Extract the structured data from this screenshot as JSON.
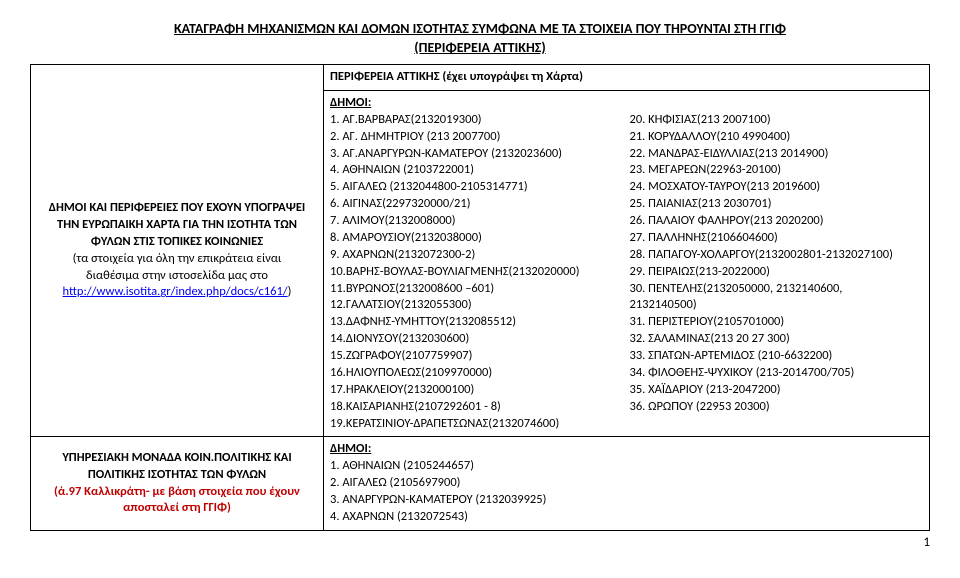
{
  "header": {
    "title": "ΚΑΤΑΓΡΑΦΗ ΜΗΧΑΝΙΣΜΩΝ ΚΑΙ ΔΟΜΩΝ ΙΣΟΤΗΤΑΣ ΣΥΜΦΩΝΑ ΜΕ ΤΑ ΣΤΟΙΧΕΙΑ ΠΟΥ ΤΗΡΟΥΝΤΑΙ ΣΤΗ ΓΓΙΦ",
    "subtitle": "(ΠΕΡΙΦΕΡΕΙΑ ΑΤΤΙΚΗΣ)"
  },
  "row1": {
    "left_l1": "ΔΗΜΟΙ ΚΑΙ ΠΕΡΙΦΕΡΕΙΕΣ ΠΟΥ ΕΧΟΥΝ ΥΠΟΓΡΑΨΕΙ",
    "left_l2": "ΤΗΝ ΕΥΡΩΠΑΙΚΗ ΧΑΡΤΑ ΓΙΑ ΤΗΝ ΙΣΟΤΗΤΑ ΤΩΝ",
    "left_l3": "ΦΥΛΩΝ ΣΤΙΣ ΤΟΠΙΚΕΣ ΚΟΙΝΩΝΙΕΣ",
    "left_l4": "(τα στοιχεία για όλη την επικράτεια είναι",
    "left_l5": "διαθέσιμα στην ιστοσελίδα μας στο",
    "left_link": "http://www.isotita.gr/index.php/docs/c161/",
    "left_l6": ")",
    "region": "ΠΕΡΙΦΕΡΕΙΑ ΑΤΤΙΚΗΣ (έχει υπογράψει τη Χάρτα)",
    "dimoi_label": "ΔΗΜΟΙ:",
    "col1": [
      "1. ΑΓ.ΒΑΡΒΑΡΑΣ(2132019300)",
      "2. ΑΓ. ΔΗΜΗΤΡΙΟΥ (213 2007700)",
      "3. ΑΓ.ΑΝΑΡΓΥΡΩΝ-ΚΑΜΑΤΕΡΟΥ (2132023600)",
      "4. ΑΘΗΝΑΙΩΝ (2103722001)",
      "5. ΑΙΓΑΛΕΩ (2132044800-2105314771)",
      "6. ΑΙΓΙΝΑΣ(2297320000/21)",
      "7. ΑΛΙΜΟΥ(2132008000)",
      "8. ΑΜΑΡΟΥΣΙΟΥ(2132038000)",
      "9. ΑΧΑΡΝΩΝ(2132072300-2)",
      "10.ΒΑΡΗΣ-ΒΟΥΛΑΣ-ΒΟΥΛΙΑΓΜΕΝΗΣ(2132020000)",
      "11.ΒΥΡΩΝΟΣ(2132008600 –601)",
      "12.ΓΑΛΑΤΣΙΟΥ(2132055300)",
      "13.ΔΑΦΝΗΣ-ΥΜΗΤΤΟΥ(2132085512)",
      "14.ΔΙΟΝΥΣΟΥ(2132030600)",
      "15.ΖΩΓΡΑΦΟΥ(2107759907)",
      "16.ΗΛΙΟΥΠΟΛΕΩΣ(2109970000)",
      "17.ΗΡΑΚΛΕΙΟΥ(2132000100)",
      "18.ΚΑΙΣΑΡΙΑΝΗΣ(2107292601 - 8)",
      "19.ΚΕΡΑΤΣΙΝΙΟΥ-ΔΡΑΠΕΤΣΩΝΑΣ(2132074600)"
    ],
    "col2": [
      "20. ΚΗΦΙΣΙΑΣ(213 2007100)",
      "21. ΚΟΡΥΔΑΛΛΟΥ(210 4990400)",
      "22. ΜΑΝΔΡΑΣ-ΕΙΔΥΛΛΙΑΣ(213 2014900)",
      "23. ΜΕΓΑΡΕΩΝ(22963-20100)",
      "24. ΜΟΣΧΑΤΟΥ-ΤΑΥΡΟΥ(213 2019600)",
      "25. ΠΑΙΑΝΙΑΣ(213 2030701)",
      "26. ΠΑΛΑΙΟΥ ΦΑΛΗΡΟΥ(213 2020200)",
      "27. ΠΑΛΛΗΝΗΣ(2106604600)",
      "28. ΠΑΠΑΓΟΥ-ΧΟΛΑΡΓΟΥ(2132002801-2132027100)",
      "29. ΠΕΙΡΑΙΩΣ(213-2022000)",
      "30. ΠΕΝΤΕΛΗΣ(2132050000, 2132140600,",
      "2132140500)",
      "31. ΠΕΡΙΣΤΕΡΙΟΥ(2105701000)",
      "32. ΣΑΛΑΜΙΝΑΣ(213 20 27 300)",
      "33. ΣΠΑΤΩΝ-ΑΡΤΕΜΙΔΟΣ (210-6632200)",
      "34. ΦΙΛΟΘΕΗΣ-ΨΥΧΙΚΟΥ (213-2014700/705)",
      "35. ΧΑΪΔΑΡΙΟΥ (213-2047200)",
      "36. ΩΡΩΠΟΥ (22953 20300)"
    ]
  },
  "row2": {
    "left_l1": "ΥΠΗΡΕΣΙΑΚΗ ΜΟΝΑΔΑ ΚΟΙΝ.ΠΟΛΙΤΙΚΗΣ ΚΑΙ",
    "left_l2": "ΠΟΛΙΤΙΚΗΣ ΙΣΟΤΗΤΑΣ ΤΩΝ ΦΥΛΩΝ",
    "left_l3a": "(ά.97 Καλλικράτη- με βάση στοιχεία που έχουν",
    "left_l3b": "αποσταλεί στη ΓΓΙΦ)",
    "dimoi_label": "ΔΗΜΟΙ:",
    "items": [
      "1.  ΑΘΗΝΑΙΩΝ (2105244657)",
      "2.  ΑΙΓΑΛΕΩ (2105697900)",
      "3.  ΑΝΑΡΓΥΡΩΝ-ΚΑΜΑΤΕΡΟΥ (2132039925)",
      "4.  ΑΧΑΡΝΩΝ (2132072543)"
    ]
  },
  "page": "1"
}
